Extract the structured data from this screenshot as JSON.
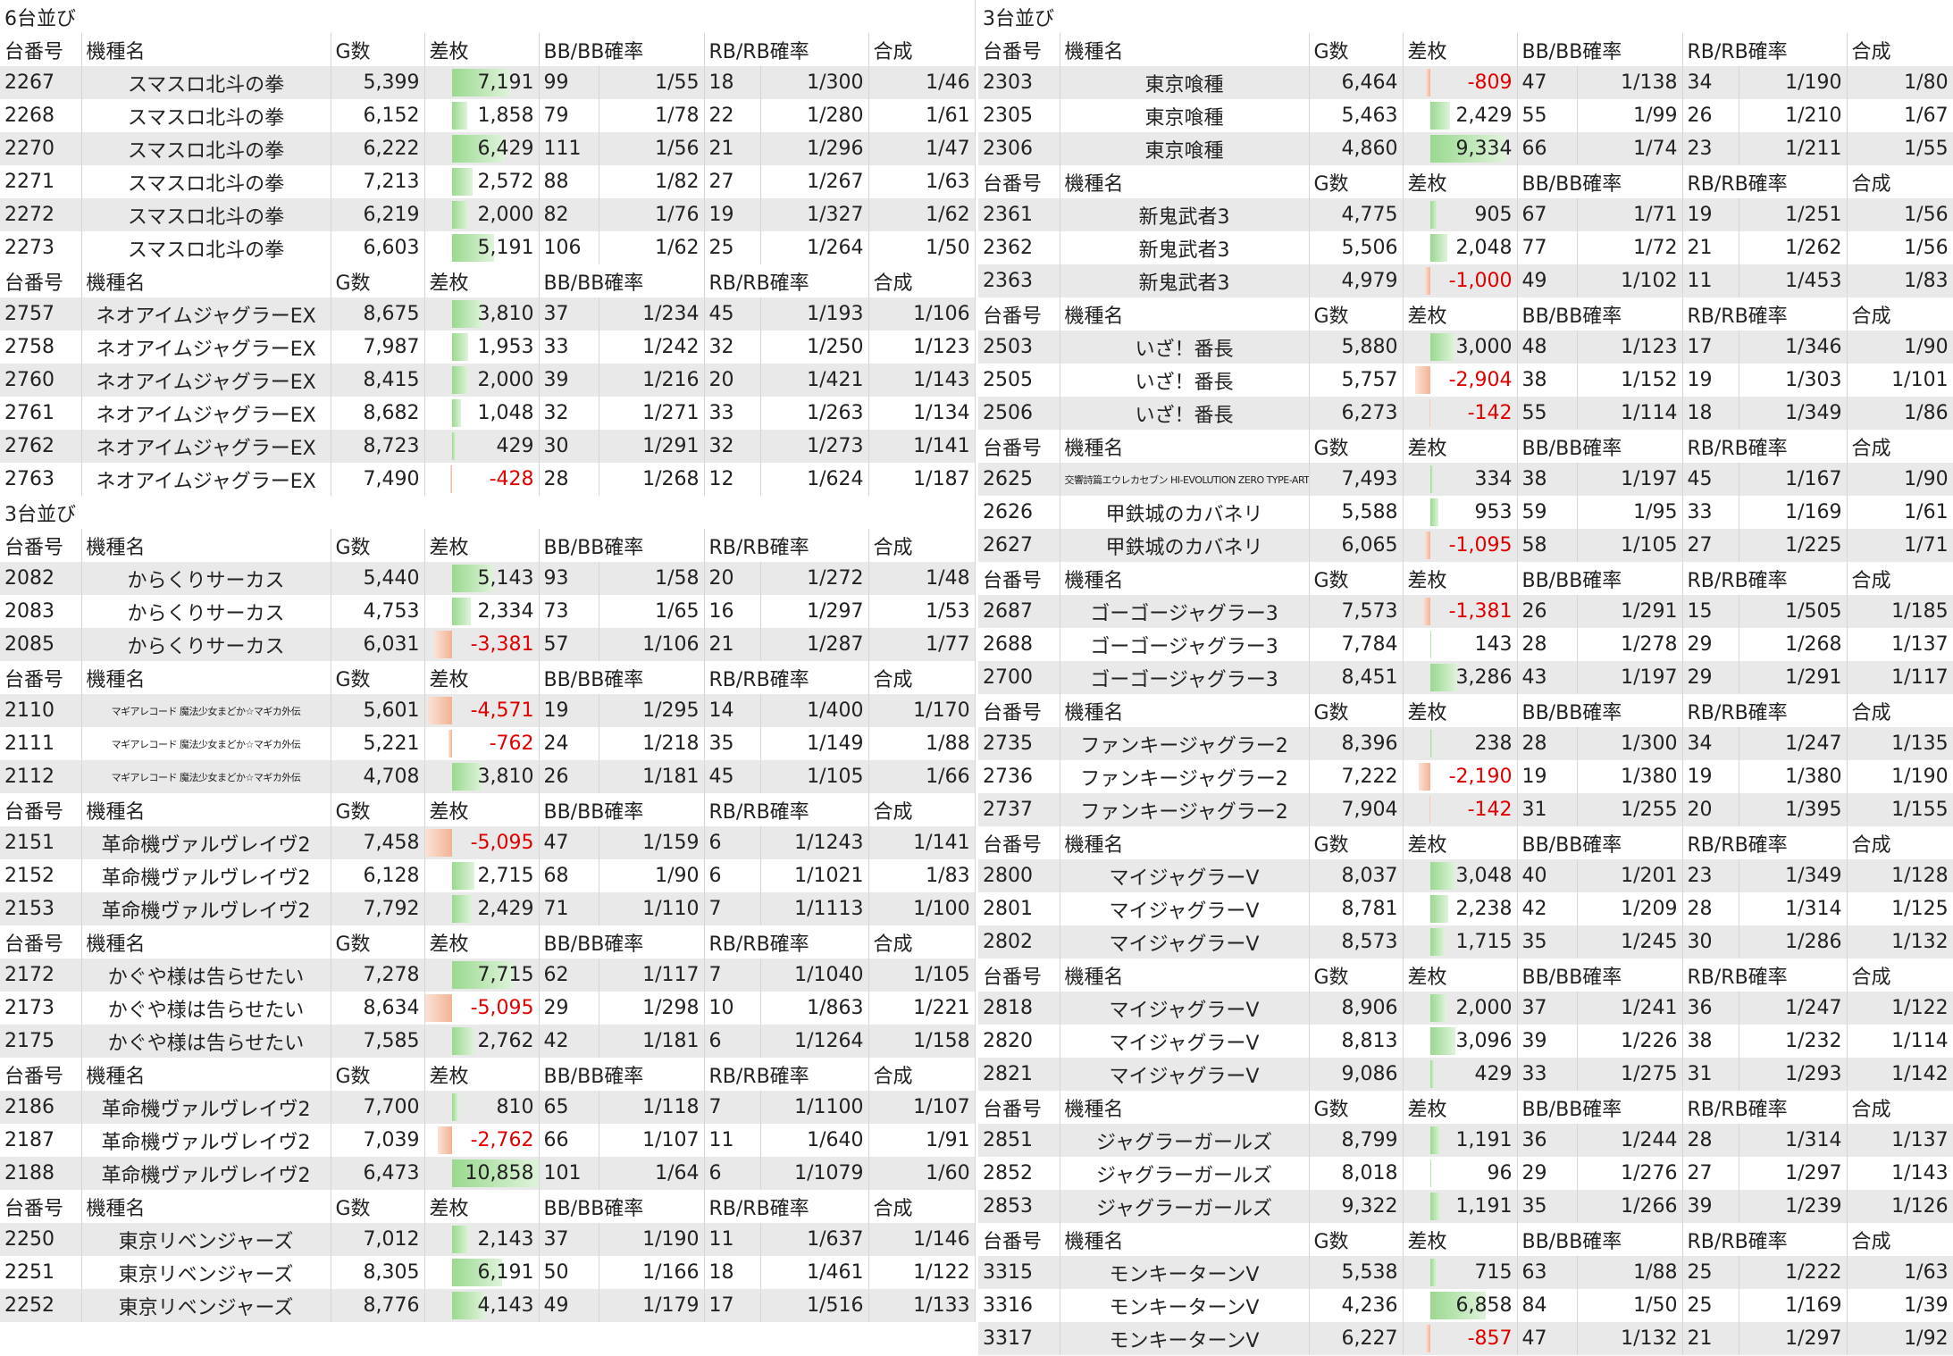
{
  "headers": [
    "台番号",
    "機種名",
    "G数",
    "差枚",
    "BB/BB確率",
    "RB/RB確率",
    "合成"
  ],
  "left": [
    {
      "title": "6台並び",
      "groups": [
        [
          [
            "2267",
            "スマスロ北斗の拳",
            "5,399",
            {
              "value": 7191,
              "label": "7,191"
            },
            "99",
            "1/55",
            "18",
            "1/300",
            "1/46"
          ],
          [
            "2268",
            "スマスロ北斗の拳",
            "6,152",
            {
              "value": 1858,
              "label": "1,858"
            },
            "79",
            "1/78",
            "22",
            "1/280",
            "1/61"
          ],
          [
            "2270",
            "スマスロ北斗の拳",
            "6,222",
            {
              "value": 6429,
              "label": "6,429"
            },
            "111",
            "1/56",
            "21",
            "1/296",
            "1/47"
          ],
          [
            "2271",
            "スマスロ北斗の拳",
            "7,213",
            {
              "value": 2572,
              "label": "2,572"
            },
            "88",
            "1/82",
            "27",
            "1/267",
            "1/63"
          ],
          [
            "2272",
            "スマスロ北斗の拳",
            "6,219",
            {
              "value": 2000,
              "label": "2,000"
            },
            "82",
            "1/76",
            "19",
            "1/327",
            "1/62"
          ],
          [
            "2273",
            "スマスロ北斗の拳",
            "6,603",
            {
              "value": 5191,
              "label": "5,191"
            },
            "106",
            "1/62",
            "25",
            "1/264",
            "1/50"
          ]
        ],
        [
          [
            "2757",
            "ネオアイムジャグラーEX",
            "8,675",
            {
              "value": 3810,
              "label": "3,810"
            },
            "37",
            "1/234",
            "45",
            "1/193",
            "1/106"
          ],
          [
            "2758",
            "ネオアイムジャグラーEX",
            "7,987",
            {
              "value": 1953,
              "label": "1,953"
            },
            "33",
            "1/242",
            "32",
            "1/250",
            "1/123"
          ],
          [
            "2760",
            "ネオアイムジャグラーEX",
            "8,415",
            {
              "value": 2000,
              "label": "2,000"
            },
            "39",
            "1/216",
            "20",
            "1/421",
            "1/143"
          ],
          [
            "2761",
            "ネオアイムジャグラーEX",
            "8,682",
            {
              "value": 1048,
              "label": "1,048"
            },
            "32",
            "1/271",
            "33",
            "1/263",
            "1/134"
          ],
          [
            "2762",
            "ネオアイムジャグラーEX",
            "8,723",
            {
              "value": 429,
              "label": "429"
            },
            "30",
            "1/291",
            "32",
            "1/273",
            "1/141"
          ],
          [
            "2763",
            "ネオアイムジャグラーEX",
            "7,490",
            {
              "value": -428,
              "label": "-428"
            },
            "28",
            "1/268",
            "12",
            "1/624",
            "1/187"
          ]
        ]
      ]
    },
    {
      "title": "3台並び",
      "groups": [
        [
          [
            "2082",
            "からくりサーカス",
            "5,440",
            {
              "value": 5143,
              "label": "5,143"
            },
            "93",
            "1/58",
            "20",
            "1/272",
            "1/48"
          ],
          [
            "2083",
            "からくりサーカス",
            "4,753",
            {
              "value": 2334,
              "label": "2,334"
            },
            "73",
            "1/65",
            "16",
            "1/297",
            "1/53"
          ],
          [
            "2085",
            "からくりサーカス",
            "6,031",
            {
              "value": -3381,
              "label": "-3,381"
            },
            "57",
            "1/106",
            "21",
            "1/287",
            "1/77"
          ]
        ],
        [
          [
            "2110",
            "マギアレコード 魔法少女まどか☆マギカ外伝",
            "5,601",
            {
              "value": -4571,
              "label": "-4,571"
            },
            "19",
            "1/295",
            "14",
            "1/400",
            "1/170"
          ],
          [
            "2111",
            "マギアレコード 魔法少女まどか☆マギカ外伝",
            "5,221",
            {
              "value": -762,
              "label": "-762"
            },
            "24",
            "1/218",
            "35",
            "1/149",
            "1/88"
          ],
          [
            "2112",
            "マギアレコード 魔法少女まどか☆マギカ外伝",
            "4,708",
            {
              "value": 3810,
              "label": "3,810"
            },
            "26",
            "1/181",
            "45",
            "1/105",
            "1/66"
          ]
        ],
        [
          [
            "2151",
            "革命機ヴァルヴレイヴ2",
            "7,458",
            {
              "value": -5095,
              "label": "-5,095"
            },
            "47",
            "1/159",
            "6",
            "1/1243",
            "1/141"
          ],
          [
            "2152",
            "革命機ヴァルヴレイヴ2",
            "6,128",
            {
              "value": 2715,
              "label": "2,715"
            },
            "68",
            "1/90",
            "6",
            "1/1021",
            "1/83"
          ],
          [
            "2153",
            "革命機ヴァルヴレイヴ2",
            "7,792",
            {
              "value": 2429,
              "label": "2,429"
            },
            "71",
            "1/110",
            "7",
            "1/1113",
            "1/100"
          ]
        ],
        [
          [
            "2172",
            "かぐや様は告らせたい",
            "7,278",
            {
              "value": 7715,
              "label": "7,715"
            },
            "62",
            "1/117",
            "7",
            "1/1040",
            "1/105"
          ],
          [
            "2173",
            "かぐや様は告らせたい",
            "8,634",
            {
              "value": -5095,
              "label": "-5,095"
            },
            "29",
            "1/298",
            "10",
            "1/863",
            "1/221"
          ],
          [
            "2175",
            "かぐや様は告らせたい",
            "7,585",
            {
              "value": 2762,
              "label": "2,762"
            },
            "42",
            "1/181",
            "6",
            "1/1264",
            "1/158"
          ]
        ],
        [
          [
            "2186",
            "革命機ヴァルヴレイヴ2",
            "7,700",
            {
              "value": 810,
              "label": "810"
            },
            "65",
            "1/118",
            "7",
            "1/1100",
            "1/107"
          ],
          [
            "2187",
            "革命機ヴァルヴレイヴ2",
            "7,039",
            {
              "value": -2762,
              "label": "-2,762"
            },
            "66",
            "1/107",
            "11",
            "1/640",
            "1/91"
          ],
          [
            "2188",
            "革命機ヴァルヴレイヴ2",
            "6,473",
            {
              "value": 10858,
              "label": "10,858"
            },
            "101",
            "1/64",
            "6",
            "1/1079",
            "1/60"
          ]
        ],
        [
          [
            "2250",
            "東京リベンジャーズ",
            "7,012",
            {
              "value": 2143,
              "label": "2,143"
            },
            "37",
            "1/190",
            "11",
            "1/637",
            "1/146"
          ],
          [
            "2251",
            "東京リベンジャーズ",
            "8,305",
            {
              "value": 6191,
              "label": "6,191"
            },
            "50",
            "1/166",
            "18",
            "1/461",
            "1/122"
          ],
          [
            "2252",
            "東京リベンジャーズ",
            "8,776",
            {
              "value": 4143,
              "label": "4,143"
            },
            "49",
            "1/179",
            "17",
            "1/516",
            "1/133"
          ]
        ]
      ]
    }
  ],
  "right": [
    {
      "title": "3台並び",
      "groups": [
        [
          [
            "2303",
            "東京喰種",
            "6,464",
            {
              "value": -809,
              "label": "-809"
            },
            "47",
            "1/138",
            "34",
            "1/190",
            "1/80"
          ],
          [
            "2305",
            "東京喰種",
            "5,463",
            {
              "value": 2429,
              "label": "2,429"
            },
            "55",
            "1/99",
            "26",
            "1/210",
            "1/67"
          ],
          [
            "2306",
            "東京喰種",
            "4,860",
            {
              "value": 9334,
              "label": "9,334"
            },
            "66",
            "1/74",
            "23",
            "1/211",
            "1/55"
          ]
        ],
        [
          [
            "2361",
            "新鬼武者3",
            "4,775",
            {
              "value": 905,
              "label": "905"
            },
            "67",
            "1/71",
            "19",
            "1/251",
            "1/56"
          ],
          [
            "2362",
            "新鬼武者3",
            "5,506",
            {
              "value": 2048,
              "label": "2,048"
            },
            "77",
            "1/72",
            "21",
            "1/262",
            "1/56"
          ],
          [
            "2363",
            "新鬼武者3",
            "4,979",
            {
              "value": -1000,
              "label": "-1,000"
            },
            "49",
            "1/102",
            "11",
            "1/453",
            "1/83"
          ]
        ],
        [
          [
            "2503",
            "いざ！番長",
            "5,880",
            {
              "value": 3000,
              "label": "3,000"
            },
            "48",
            "1/123",
            "17",
            "1/346",
            "1/90"
          ],
          [
            "2505",
            "いざ！番長",
            "5,757",
            {
              "value": -2904,
              "label": "-2,904"
            },
            "38",
            "1/152",
            "19",
            "1/303",
            "1/101"
          ],
          [
            "2506",
            "いざ！番長",
            "6,273",
            {
              "value": -142,
              "label": "-142"
            },
            "55",
            "1/114",
            "18",
            "1/349",
            "1/86"
          ]
        ],
        [
          [
            "2625",
            "交響詩篇エウレカセブン HI-EVOLUTION ZERO TYPE-ART",
            "7,493",
            {
              "value": 334,
              "label": "334"
            },
            "38",
            "1/197",
            "45",
            "1/167",
            "1/90"
          ],
          [
            "2626",
            "甲鉄城のカバネリ",
            "5,588",
            {
              "value": 953,
              "label": "953"
            },
            "59",
            "1/95",
            "33",
            "1/169",
            "1/61"
          ],
          [
            "2627",
            "甲鉄城のカバネリ",
            "6,065",
            {
              "value": -1095,
              "label": "-1,095"
            },
            "58",
            "1/105",
            "27",
            "1/225",
            "1/71"
          ]
        ],
        [
          [
            "2687",
            "ゴーゴージャグラー3",
            "7,573",
            {
              "value": -1381,
              "label": "-1,381"
            },
            "26",
            "1/291",
            "15",
            "1/505",
            "1/185"
          ],
          [
            "2688",
            "ゴーゴージャグラー3",
            "7,784",
            {
              "value": 143,
              "label": "143"
            },
            "28",
            "1/278",
            "29",
            "1/268",
            "1/137"
          ],
          [
            "2700",
            "ゴーゴージャグラー3",
            "8,451",
            {
              "value": 3286,
              "label": "3,286"
            },
            "43",
            "1/197",
            "29",
            "1/291",
            "1/117"
          ]
        ],
        [
          [
            "2735",
            "ファンキージャグラー2",
            "8,396",
            {
              "value": 238,
              "label": "238"
            },
            "28",
            "1/300",
            "34",
            "1/247",
            "1/135"
          ],
          [
            "2736",
            "ファンキージャグラー2",
            "7,222",
            {
              "value": -2190,
              "label": "-2,190"
            },
            "19",
            "1/380",
            "19",
            "1/380",
            "1/190"
          ],
          [
            "2737",
            "ファンキージャグラー2",
            "7,904",
            {
              "value": -142,
              "label": "-142"
            },
            "31",
            "1/255",
            "20",
            "1/395",
            "1/155"
          ]
        ],
        [
          [
            "2800",
            "マイジャグラーV",
            "8,037",
            {
              "value": 3048,
              "label": "3,048"
            },
            "40",
            "1/201",
            "23",
            "1/349",
            "1/128"
          ],
          [
            "2801",
            "マイジャグラーV",
            "8,781",
            {
              "value": 2238,
              "label": "2,238"
            },
            "42",
            "1/209",
            "28",
            "1/314",
            "1/125"
          ],
          [
            "2802",
            "マイジャグラーV",
            "8,573",
            {
              "value": 1715,
              "label": "1,715"
            },
            "35",
            "1/245",
            "30",
            "1/286",
            "1/132"
          ]
        ],
        [
          [
            "2818",
            "マイジャグラーV",
            "8,906",
            {
              "value": 2000,
              "label": "2,000"
            },
            "37",
            "1/241",
            "36",
            "1/247",
            "1/122"
          ],
          [
            "2820",
            "マイジャグラーV",
            "8,813",
            {
              "value": 3096,
              "label": "3,096"
            },
            "39",
            "1/226",
            "38",
            "1/232",
            "1/114"
          ],
          [
            "2821",
            "マイジャグラーV",
            "9,086",
            {
              "value": 429,
              "label": "429"
            },
            "33",
            "1/275",
            "31",
            "1/293",
            "1/142"
          ]
        ],
        [
          [
            "2851",
            "ジャグラーガールズ",
            "8,799",
            {
              "value": 1191,
              "label": "1,191"
            },
            "36",
            "1/244",
            "28",
            "1/314",
            "1/137"
          ],
          [
            "2852",
            "ジャグラーガールズ",
            "8,018",
            {
              "value": 96,
              "label": "96"
            },
            "29",
            "1/276",
            "27",
            "1/297",
            "1/143"
          ],
          [
            "2853",
            "ジャグラーガールズ",
            "9,322",
            {
              "value": 1191,
              "label": "1,191"
            },
            "35",
            "1/266",
            "39",
            "1/239",
            "1/126"
          ]
        ],
        [
          [
            "3315",
            "モンキーターンV",
            "5,538",
            {
              "value": 715,
              "label": "715"
            },
            "63",
            "1/88",
            "25",
            "1/222",
            "1/63"
          ],
          [
            "3316",
            "モンキーターンV",
            "4,236",
            {
              "value": 6858,
              "label": "6,858"
            },
            "84",
            "1/50",
            "25",
            "1/169",
            "1/39"
          ],
          [
            "3317",
            "モンキーターンV",
            "6,227",
            {
              "value": -857,
              "label": "-857"
            },
            "47",
            "1/132",
            "21",
            "1/297",
            "1/92"
          ]
        ]
      ]
    }
  ]
}
